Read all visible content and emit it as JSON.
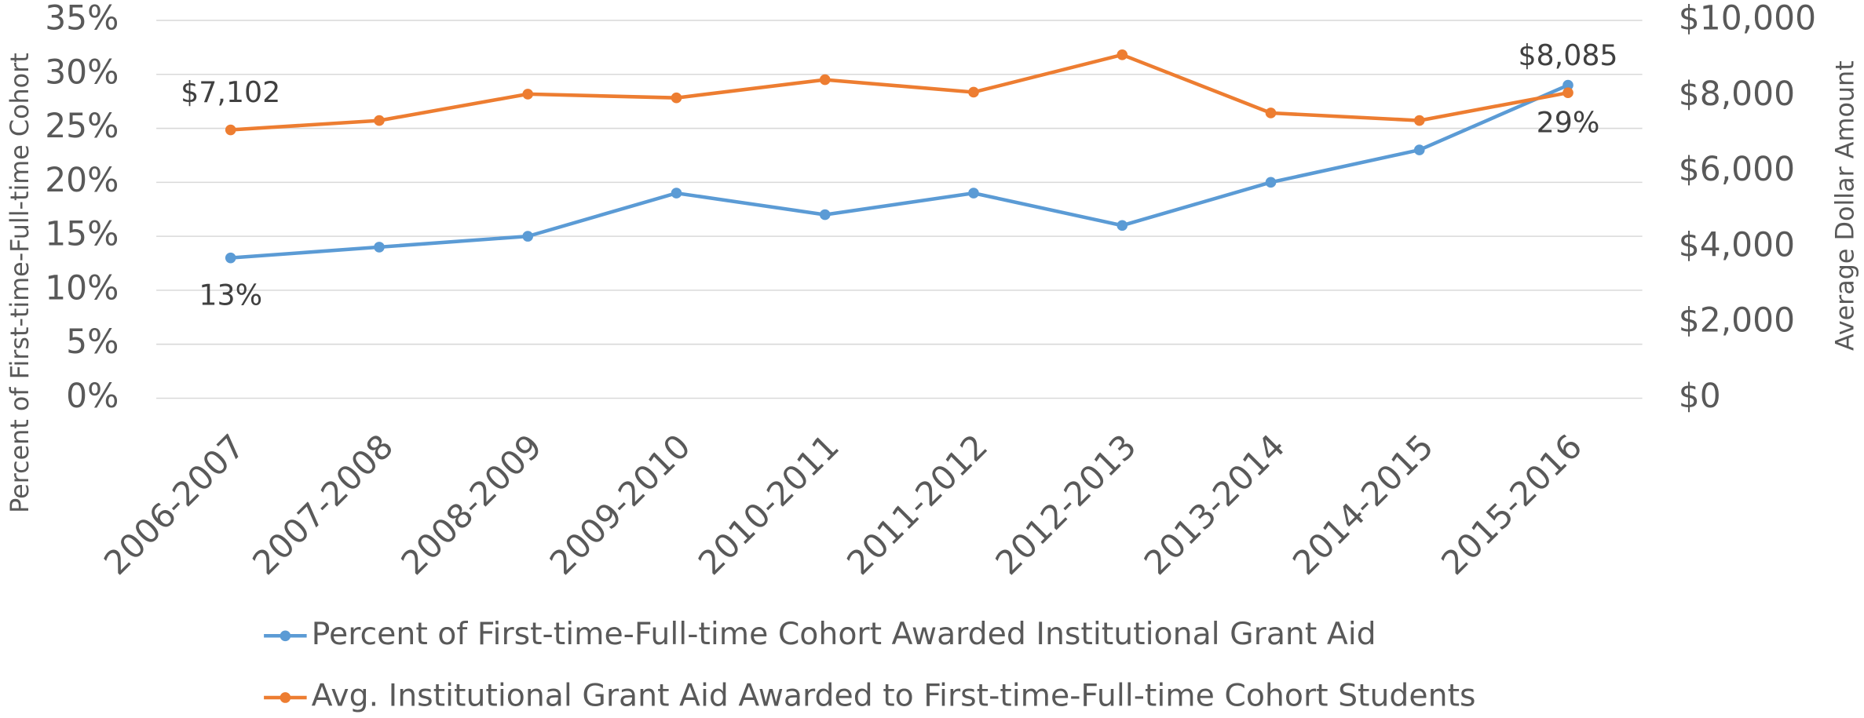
{
  "chart_data": {
    "type": "line",
    "categories": [
      "2006-2007",
      "2007-2008",
      "2008-2009",
      "2009-2010",
      "2010-2011",
      "2011-2012",
      "2012-2013",
      "2013-2014",
      "2014-2015",
      "2015-2016"
    ],
    "series": [
      {
        "name": "Percent of First-time-Full-time Cohort Awarded Institutional Grant Aid",
        "color": "#5b9bd5",
        "values": [
          13,
          14,
          15,
          19,
          17,
          19,
          16,
          20,
          23,
          29
        ],
        "value_labels": [
          "13%",
          null,
          null,
          null,
          null,
          null,
          null,
          null,
          null,
          "29%"
        ]
      },
      {
        "name": "Avg. Institutional Grant Aid Awarded to First-time-Full-time Cohort Students",
        "color": "#ed7d31",
        "axis": "y2",
        "values": [
          7102,
          7350,
          8050,
          7950,
          8430,
          8100,
          9090,
          7550,
          7350,
          8085
        ],
        "value_labels": [
          "$7,102",
          null,
          null,
          null,
          null,
          null,
          null,
          null,
          null,
          "$8,085"
        ]
      }
    ],
    "ylabel": "Percent of First-time-Full-time Cohort",
    "y2label": "Average Dollar Amount",
    "ylim": [
      0,
      35
    ],
    "yticks": [
      {
        "value": 0,
        "label": "0%"
      },
      {
        "value": 5,
        "label": "5%"
      },
      {
        "value": 10,
        "label": "10%"
      },
      {
        "value": 15,
        "label": "15%"
      },
      {
        "value": 20,
        "label": "20%"
      },
      {
        "value": 25,
        "label": "25%"
      },
      {
        "value": 30,
        "label": "30%"
      },
      {
        "value": 35,
        "label": "35%"
      }
    ],
    "y2lim": [
      0,
      10000
    ],
    "y2ticks": [
      {
        "value": 0,
        "label": "$0"
      },
      {
        "value": 2000,
        "label": "$2,000"
      },
      {
        "value": 4000,
        "label": "$4,000"
      },
      {
        "value": 6000,
        "label": "$6,000"
      },
      {
        "value": 8000,
        "label": "$8,000"
      },
      {
        "value": 10000,
        "label": "$10,000"
      }
    ],
    "grid": true,
    "legend": "bottom"
  }
}
